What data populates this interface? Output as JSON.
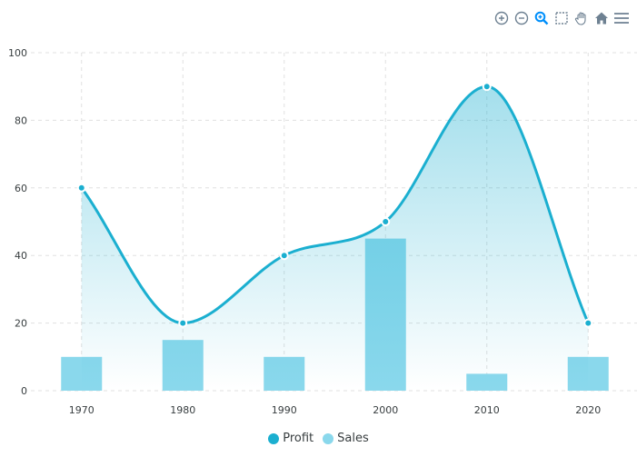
{
  "toolbar": {
    "icons": [
      "zoom-in-icon",
      "zoom-out-icon",
      "selection-zoom-icon",
      "select-icon",
      "pan-icon",
      "home-icon",
      "menu-icon"
    ],
    "active_color": "#008FFB",
    "color": "#6E8192"
  },
  "chart_data": {
    "type": "line+bar",
    "categories": [
      "1970",
      "1980",
      "1990",
      "2000",
      "2010",
      "2020"
    ],
    "series": [
      {
        "name": "Profit",
        "type": "area-line",
        "values": [
          60,
          20,
          40,
          50,
          90,
          20
        ],
        "color": "#1BAFD0"
      },
      {
        "name": "Sales",
        "type": "bar",
        "values": [
          10,
          15,
          10,
          45,
          5,
          10
        ],
        "color": "#8AD8EC"
      }
    ],
    "ylim": [
      0,
      100
    ],
    "yticks": [
      "0",
      "20",
      "40",
      "60",
      "80",
      "100"
    ],
    "grid": true,
    "legend_position": "bottom",
    "curve": "smooth"
  }
}
